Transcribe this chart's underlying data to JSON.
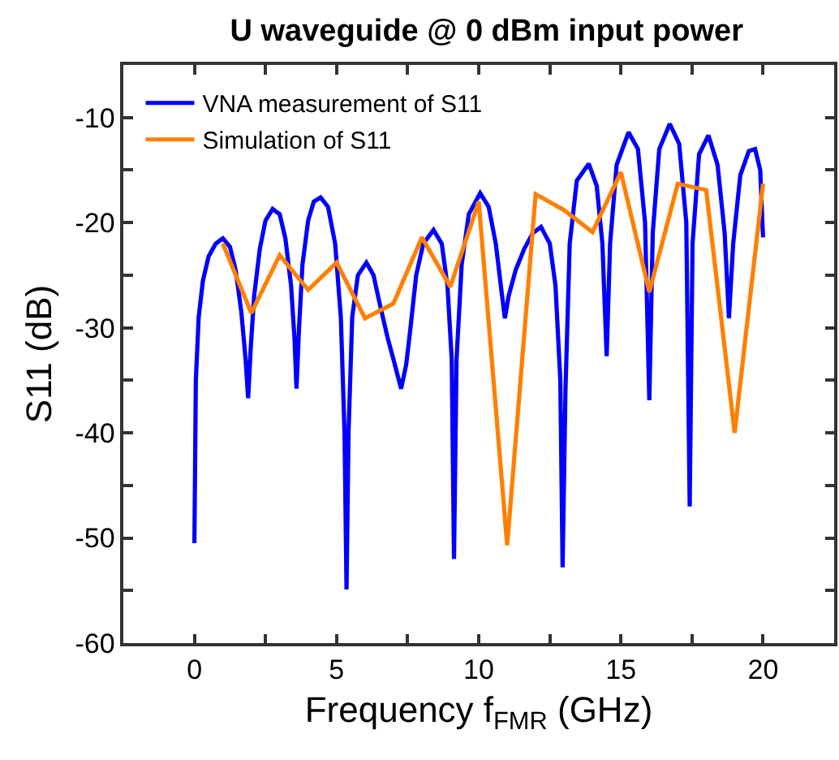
{
  "chart_data": {
    "type": "line",
    "title": "U waveguide @ 0 dBm input power",
    "xlabel": "Frequency f$_{FMR}$ (GHz)",
    "ylabel": "S11 (dB)",
    "xlim": [
      -2.5,
      22.5
    ],
    "xticks": [
      0,
      {
        "value": 2.5,
        "label": null
      },
      5,
      {
        "value": 7.5,
        "label": null
      },
      10,
      {
        "value": 12.5,
        "label": null
      },
      15,
      {
        "value": 17.5,
        "label": null
      },
      20
    ],
    "ylim": [
      -60,
      -5
    ],
    "yticks": [
      -60,
      {
        "value": -55,
        "label": null
      },
      -50,
      {
        "value": -45,
        "label": null
      },
      -40,
      {
        "value": -35,
        "label": null
      },
      -30,
      {
        "value": -25,
        "label": null
      },
      -20,
      {
        "value": -15,
        "label": null
      },
      -10
    ],
    "grid": false,
    "legend": "top left",
    "marker": "none",
    "line_style": "solid",
    "series": [
      {
        "name": "VNA measurement of S11",
        "color": "#0000ff",
        "x": [
          0,
          0.05,
          0.15,
          0.3,
          0.5,
          0.75,
          1.0,
          1.25,
          1.45,
          1.65,
          1.8,
          1.89,
          1.98,
          2.1,
          2.3,
          2.5,
          2.75,
          3.0,
          3.2,
          3.4,
          3.52,
          3.59,
          3.68,
          3.8,
          4.0,
          4.2,
          4.44,
          4.7,
          4.95,
          5.15,
          5.28,
          5.35,
          5.42,
          5.55,
          5.75,
          6.05,
          6.3,
          6.5,
          6.8,
          7.0,
          7.27,
          7.45,
          7.6,
          7.8,
          8.05,
          8.41,
          8.7,
          8.9,
          9.05,
          9.13,
          9.22,
          9.4,
          9.65,
          10.05,
          10.35,
          10.6,
          10.8,
          10.92,
          11.05,
          11.3,
          11.6,
          11.9,
          12.19,
          12.5,
          12.7,
          12.87,
          12.95,
          13.05,
          13.2,
          13.45,
          13.87,
          14.15,
          14.35,
          14.5,
          14.62,
          14.85,
          15.27,
          15.6,
          15.85,
          16.0,
          16.12,
          16.35,
          16.72,
          17.05,
          17.3,
          17.42,
          17.52,
          17.75,
          18.08,
          18.4,
          18.65,
          18.8,
          18.95,
          19.2,
          19.5,
          19.72,
          19.9,
          20.0
        ],
        "values": [
          -50.5,
          -35,
          -29,
          -25.5,
          -23.2,
          -22,
          -21.5,
          -22.3,
          -24.5,
          -28.5,
          -33,
          -36.7,
          -32,
          -27,
          -22.5,
          -19.8,
          -18.7,
          -19.2,
          -21.5,
          -26,
          -31,
          -35.8,
          -30,
          -24,
          -19.8,
          -18,
          -17.6,
          -18.5,
          -22,
          -29,
          -40,
          -54.9,
          -40,
          -29,
          -25,
          -23.8,
          -25,
          -27.5,
          -31,
          -33,
          -35.8,
          -33.5,
          -30,
          -25,
          -22,
          -20.7,
          -22,
          -26,
          -33,
          -52,
          -33,
          -24,
          -19.2,
          -17.2,
          -18.5,
          -22,
          -26.5,
          -29.1,
          -27,
          -24.5,
          -22.5,
          -21,
          -20.4,
          -22,
          -26,
          -35,
          -52.8,
          -36,
          -22,
          -16,
          -14.4,
          -16.5,
          -22,
          -32.7,
          -22,
          -14.5,
          -11.4,
          -13,
          -20,
          -36.9,
          -21,
          -13,
          -10.6,
          -12.5,
          -20,
          -47,
          -22,
          -13.5,
          -11.7,
          -14.5,
          -21,
          -29.1,
          -22,
          -15.5,
          -13.2,
          -13,
          -15,
          -21.4
        ]
      },
      {
        "name": "Simulation of S11",
        "color": "#ff8000",
        "x": [
          1,
          2,
          3,
          4,
          5,
          6,
          7,
          8,
          9,
          10,
          11,
          12,
          13,
          14,
          15,
          16,
          17,
          18,
          19,
          20
        ],
        "values": [
          -22,
          -28.6,
          -23.1,
          -26.4,
          -23.8,
          -29.1,
          -27.7,
          -21.4,
          -26.1,
          -18,
          -50.7,
          -17.3,
          -18.8,
          -20.9,
          -15.2,
          -26.6,
          -16.3,
          -16.9,
          -40,
          -16.3
        ]
      }
    ]
  }
}
